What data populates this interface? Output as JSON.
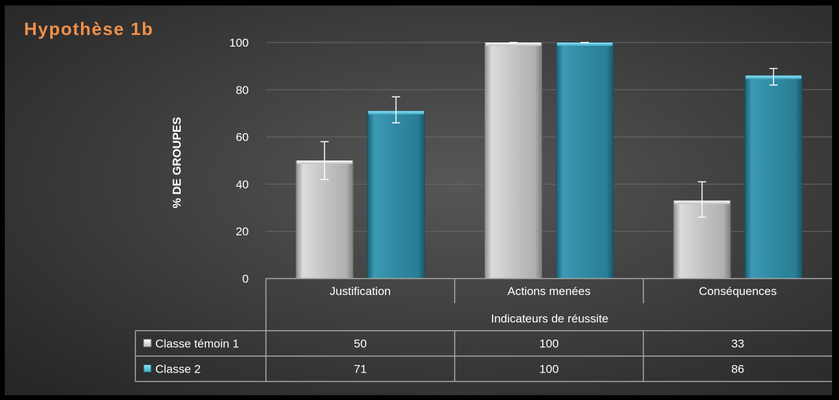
{
  "chart_data": {
    "type": "bar",
    "title": "Hypothèse 1b",
    "ylabel": "% DE GROUPES",
    "xlabel": "Indicateurs de réussite",
    "categories": [
      "Justification",
      "Actions menées",
      "Conséquences"
    ],
    "ylim": [
      0,
      100
    ],
    "yticks": [
      0,
      20,
      40,
      60,
      80,
      100
    ],
    "grid": true,
    "legend": "data-table",
    "series": [
      {
        "name": "Classe témoin 1",
        "values": [
          50,
          100,
          33
        ],
        "error_low": [
          42,
          100,
          26
        ],
        "error_high": [
          58,
          100,
          41
        ],
        "color": "#c4c4c4"
      },
      {
        "name": "Classe 2",
        "values": [
          71,
          100,
          86
        ],
        "error_low": [
          66,
          100,
          82
        ],
        "error_high": [
          77,
          100,
          89
        ],
        "color": "#2f8aa3"
      }
    ],
    "colors": {
      "background": "#2b2b2b",
      "title": "#f0904a",
      "text": "#ffffff",
      "grid": "#6a6a6a"
    }
  }
}
